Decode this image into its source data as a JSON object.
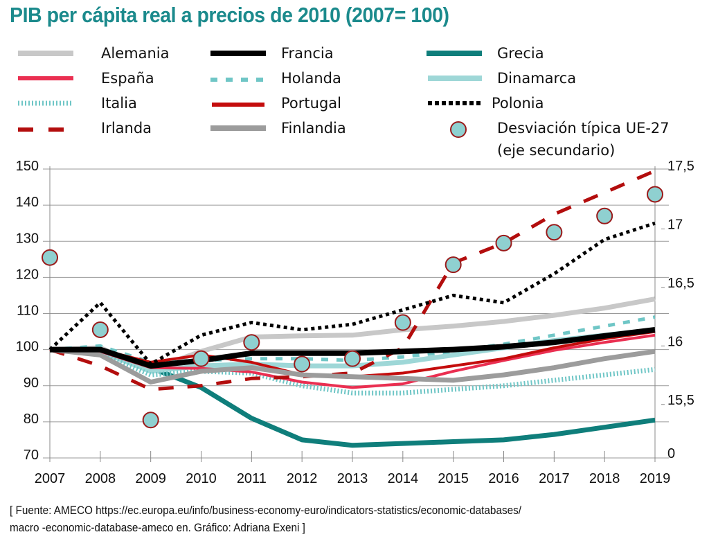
{
  "chart_data": {
    "type": "line",
    "title": "PIB per cápita real a precios de 2010 (2007= 100)",
    "xlabel": "",
    "ylabel": "",
    "x": [
      "2007",
      "2008",
      "2009",
      "2010",
      "2011",
      "2012",
      "2013",
      "2014",
      "2015",
      "2016",
      "2017",
      "2018",
      "2019"
    ],
    "ylim": [
      70,
      150
    ],
    "yticks": [
      "70",
      "80",
      "90",
      "100",
      "110",
      "120",
      "130",
      "140",
      "150"
    ],
    "secondary_axis": {
      "label": "Desviación típica UE-27 (eje secundario)",
      "ticks": [
        "0",
        "15,5",
        "16",
        "16,5",
        "17",
        "17,5"
      ],
      "tick_values": [
        15.24,
        15.5,
        16.0,
        16.5,
        17.0,
        17.5
      ],
      "note": "axis is broken between 0 and 15,5"
    },
    "grid": true,
    "legend_position": "top",
    "series": [
      {
        "name": "Alemania",
        "color": "#c8c8c8",
        "style": "solid",
        "values": [
          100,
          100.5,
          94.5,
          99.5,
          103.5,
          103.8,
          104.0,
          105.5,
          106.5,
          107.8,
          109.5,
          111.5,
          114.0
        ]
      },
      {
        "name": "España",
        "color": "#ea2f51",
        "style": "solid",
        "values": [
          100,
          99.5,
          95.0,
          94.8,
          93.8,
          91.0,
          89.5,
          90.5,
          94.0,
          97.0,
          99.8,
          102.0,
          104.0
        ]
      },
      {
        "name": "Italia",
        "color": "#6fc6c6",
        "style": "vertical-hatch",
        "values": [
          100,
          99.0,
          93.0,
          94.0,
          93.5,
          90.0,
          88.0,
          88.0,
          89.0,
          90.0,
          91.5,
          93.0,
          94.5
        ]
      },
      {
        "name": "Irlanda",
        "color": "#b30d0d",
        "style": "long-dash",
        "values": [
          100,
          95.5,
          89.0,
          90.0,
          92.0,
          92.5,
          93.5,
          100.5,
          124.0,
          129.5,
          137.5,
          143.5,
          149.5
        ]
      },
      {
        "name": "Francia",
        "color": "#000000",
        "style": "solid",
        "values": [
          100,
          100.0,
          95.5,
          97.0,
          99.0,
          99.0,
          99.0,
          99.5,
          100.0,
          100.8,
          102.0,
          103.8,
          105.5
        ]
      },
      {
        "name": "Holanda",
        "color": "#6fc6c6",
        "style": "dash",
        "values": [
          100,
          101.0,
          96.5,
          97.0,
          97.5,
          97.5,
          97.0,
          98.0,
          99.5,
          101.5,
          104.0,
          106.5,
          109.0
        ]
      },
      {
        "name": "Portugal",
        "color": "#c40c0c",
        "style": "solid",
        "values": [
          100,
          100.0,
          96.5,
          98.5,
          96.5,
          93.0,
          92.5,
          93.5,
          95.5,
          97.5,
          100.5,
          103.0,
          105.0
        ]
      },
      {
        "name": "Finlandia",
        "color": "#9c9c9c",
        "style": "solid",
        "values": [
          100,
          98.5,
          91.0,
          94.0,
          95.0,
          93.0,
          92.5,
          92.0,
          91.5,
          93.0,
          95.0,
          97.5,
          99.5
        ]
      },
      {
        "name": "Grecia",
        "color": "#0f7e7b",
        "style": "solid",
        "values": [
          100,
          99.5,
          95.0,
          89.5,
          81.0,
          75.0,
          73.5,
          74.0,
          74.5,
          75.0,
          76.5,
          78.5,
          80.5
        ]
      },
      {
        "name": "Dinamarca",
        "color": "#9ed7d7",
        "style": "solid",
        "values": [
          100,
          99.5,
          94.0,
          95.5,
          96.0,
          95.5,
          95.5,
          96.5,
          98.5,
          100.5,
          102.5,
          104.0,
          105.5
        ]
      },
      {
        "name": "Polonia",
        "color": "#000000",
        "style": "dotted",
        "values": [
          100,
          113.0,
          96.0,
          104.0,
          107.5,
          105.5,
          107.0,
          111.0,
          115.0,
          113.0,
          121.0,
          130.5,
          135.0
        ]
      }
    ],
    "scatter_series": {
      "name": "Desviación típica UE-27 (eje secundario)",
      "fill": "#8fd0d0",
      "stroke": "#9a1a1a",
      "axis": "secondary",
      "values_primary_scale": [
        125.5,
        105.5,
        80.5,
        97.5,
        102.0,
        96.0,
        97.5,
        107.5,
        123.5,
        129.5,
        132.5,
        137.0,
        143.0
      ]
    }
  },
  "legend": {
    "items": [
      {
        "label": "Alemania"
      },
      {
        "label": "España"
      },
      {
        "label": "Italia"
      },
      {
        "label": "Irlanda"
      },
      {
        "label": "Francia"
      },
      {
        "label": "Holanda"
      },
      {
        "label": "Portugal"
      },
      {
        "label": "Finlandia"
      },
      {
        "label": "Grecia"
      },
      {
        "label": "Dinamarca"
      },
      {
        "label": "Polonia"
      },
      {
        "label": "Desviación típica UE-27"
      },
      {
        "label": "(eje secundario)"
      }
    ]
  },
  "source": {
    "line1": "[ Fuente: AMECO https://ec.europa.eu/info/business-economy-euro/indicators-statistics/economic-databases/",
    "line2": "macro -economic-database-ameco en. Gráfico: Adriana Exeni ]"
  }
}
